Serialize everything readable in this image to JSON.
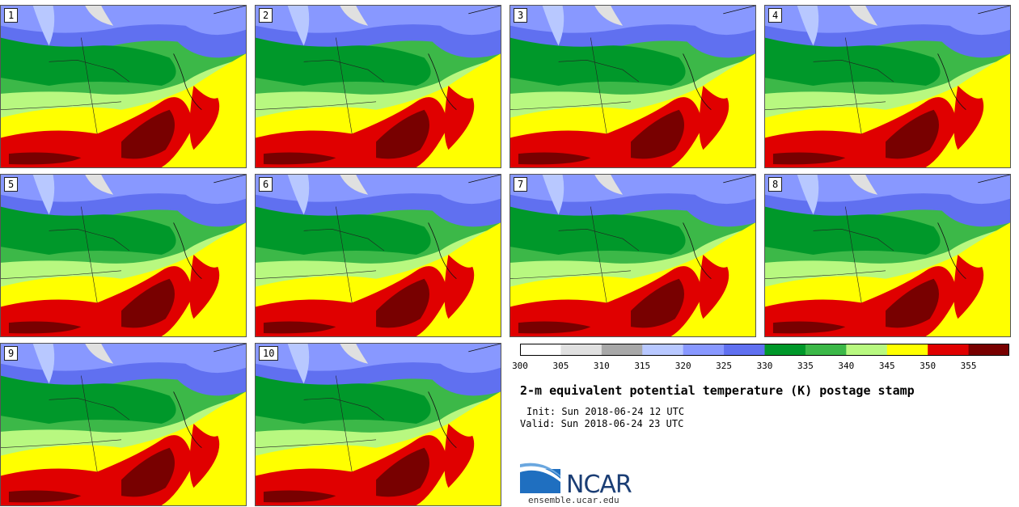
{
  "panels": [
    {
      "label": "1"
    },
    {
      "label": "2"
    },
    {
      "label": "3"
    },
    {
      "label": "4"
    },
    {
      "label": "5"
    },
    {
      "label": "6"
    },
    {
      "label": "7"
    },
    {
      "label": "8"
    },
    {
      "label": "9"
    },
    {
      "label": "10"
    }
  ],
  "colorbar": {
    "ticks": [
      "300",
      "305",
      "310",
      "315",
      "320",
      "325",
      "330",
      "335",
      "340",
      "345",
      "350",
      "355"
    ],
    "colors": [
      "#ffffff",
      "#e0e0e0",
      "#a8a8a8",
      "#b8c8ff",
      "#8898ff",
      "#6070f0",
      "#00982a",
      "#3cb848",
      "#b8f880",
      "#ffff00",
      "#e00000",
      "#780000"
    ]
  },
  "title": "2-m equivalent potential temperature (K) postage stamp",
  "init": "Init: Sun 2018-06-24 12 UTC",
  "valid": "Valid: Sun 2018-06-24 23 UTC",
  "logo": {
    "text": "NCAR",
    "url": "ensemble.ucar.edu"
  }
}
